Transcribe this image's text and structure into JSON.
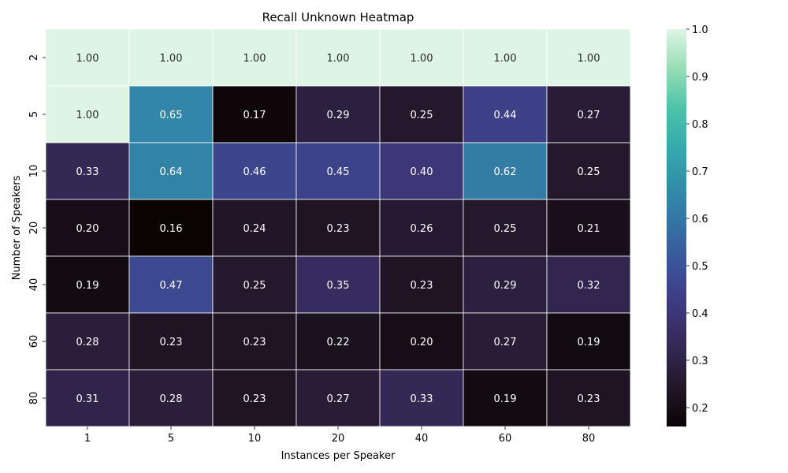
{
  "chart_data": {
    "type": "heatmap",
    "title": "Recall Unknown Heatmap",
    "xlabel": "Instances per Speaker",
    "ylabel": "Number of Speakers",
    "x_categories": [
      "1",
      "5",
      "10",
      "20",
      "40",
      "60",
      "80"
    ],
    "y_categories": [
      "2",
      "5",
      "10",
      "20",
      "40",
      "60",
      "80"
    ],
    "values": [
      [
        1.0,
        1.0,
        1.0,
        1.0,
        1.0,
        1.0,
        1.0
      ],
      [
        1.0,
        0.65,
        0.17,
        0.29,
        0.25,
        0.44,
        0.27
      ],
      [
        0.33,
        0.64,
        0.46,
        0.45,
        0.4,
        0.62,
        0.25
      ],
      [
        0.2,
        0.16,
        0.24,
        0.23,
        0.26,
        0.25,
        0.21
      ],
      [
        0.19,
        0.47,
        0.25,
        0.35,
        0.23,
        0.29,
        0.32
      ],
      [
        0.28,
        0.23,
        0.23,
        0.22,
        0.2,
        0.27,
        0.19
      ],
      [
        0.31,
        0.28,
        0.23,
        0.27,
        0.33,
        0.19,
        0.23
      ]
    ],
    "value_format": "0.00",
    "colormap": "mako",
    "color_range": [
      0.16,
      1.0
    ],
    "colorbar_ticks": [
      "0.2",
      "0.3",
      "0.4",
      "0.5",
      "0.6",
      "0.7",
      "0.8",
      "0.9",
      "1.0"
    ],
    "grid": false,
    "cell_border_color": "#ffffff"
  }
}
